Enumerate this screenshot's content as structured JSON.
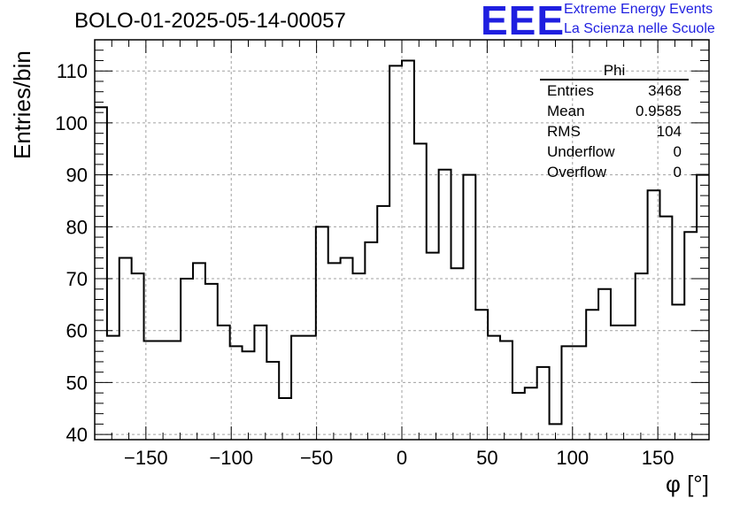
{
  "title": "BOLO-01-2025-05-14-00057",
  "logo": {
    "text": "EEE",
    "line1": "Extreme Energy Events",
    "line2": "La Scienza nelle Scuole",
    "color": "#1f1fe0"
  },
  "stats": {
    "name": "Phi",
    "rows": [
      {
        "label": "Entries",
        "value": "3468"
      },
      {
        "label": "Mean",
        "value": "0.9585"
      },
      {
        "label": "RMS",
        "value": "104"
      },
      {
        "label": "Underflow",
        "value": "0"
      },
      {
        "label": "Overflow",
        "value": "0"
      }
    ]
  },
  "chart_data": {
    "type": "histogram",
    "title": "BOLO-01-2025-05-14-00057",
    "xlabel": "φ [°]",
    "ylabel": "Entries/bin",
    "xlim": [
      -180,
      180
    ],
    "ylim": [
      39,
      116
    ],
    "bin_width": 7.2,
    "x_ticks": [
      -150,
      -100,
      -50,
      0,
      50,
      100,
      150
    ],
    "x_tick_labels": [
      "−150",
      "−100",
      "−50",
      "0",
      "50",
      "100",
      "150"
    ],
    "y_ticks": [
      40,
      50,
      60,
      70,
      80,
      90,
      100,
      110
    ],
    "y_tick_labels": [
      "40",
      "50",
      "60",
      "70",
      "80",
      "90",
      "100",
      "110"
    ],
    "grid": true,
    "values": [
      103,
      59,
      74,
      71,
      58,
      58,
      58,
      70,
      73,
      69,
      61,
      57,
      56,
      61,
      54,
      47,
      59,
      59,
      80,
      73,
      74,
      71,
      77,
      84,
      111,
      112,
      96,
      75,
      91,
      72,
      90,
      64,
      59,
      58,
      48,
      49,
      53,
      42,
      57,
      57,
      64,
      68,
      61,
      61,
      71,
      87,
      82,
      65,
      79,
      90
    ]
  }
}
